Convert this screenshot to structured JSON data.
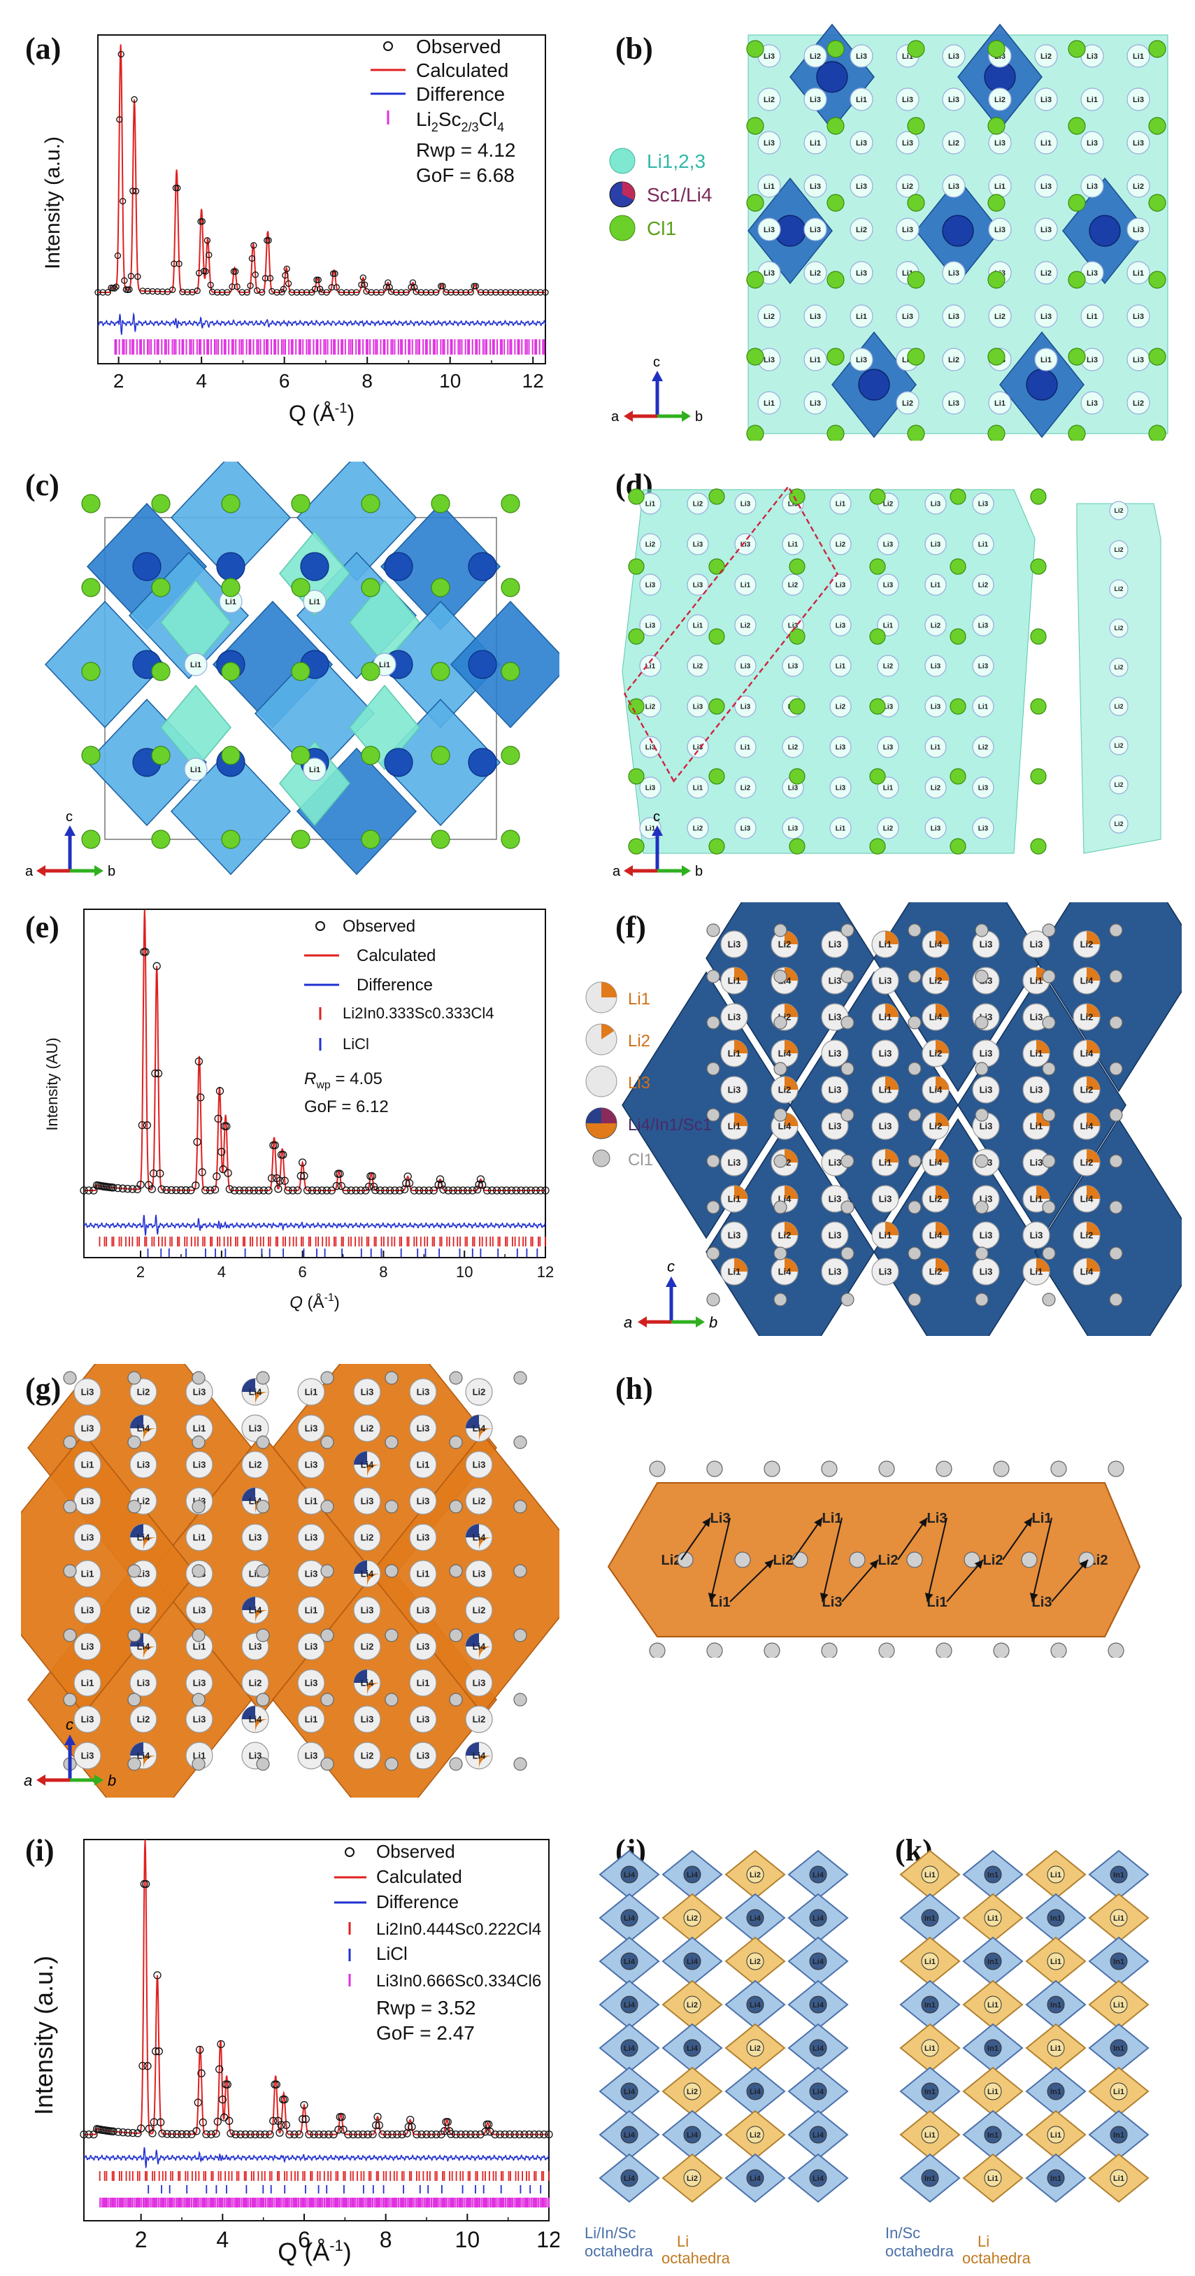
{
  "labels": {
    "a": "(a)",
    "b": "(b)",
    "c": "(c)",
    "d": "(d)",
    "e": "(e)",
    "f": "(f)",
    "g": "(g)",
    "h": "(h)",
    "i": "(i)",
    "j": "(j)",
    "k": "(k)"
  },
  "plot_a": {
    "ylabel": "Intensity (a.u.)",
    "xlabel_main": "Q (Å",
    "xlabel_sup": "-1",
    "xlabel_end": ")",
    "legend": [
      "Observed",
      "Calculated",
      "Difference"
    ],
    "phase_main": "Li",
    "phase_sub1": "2",
    "phase_mid": "Sc",
    "phase_sub2": "2/3",
    "phase_end": "Cl",
    "phase_sub3": "4",
    "rwp": "Rwp = 4.12",
    "gof": "GoF = 6.68",
    "ticks": [
      "2",
      "4",
      "6",
      "8",
      "10",
      "12"
    ]
  },
  "plot_e": {
    "ylabel": "Intensity (AU)",
    "xlabel_main": "Q",
    "xlabel_end": " (Å",
    "xlabel_sup": "-1",
    "xlabel_close": ")",
    "legend": [
      "Observed",
      "Calculated",
      "Difference"
    ],
    "phase1": "Li2In0.333Sc0.333Cl4",
    "phase2": "LiCl",
    "rwp_prefix": "R",
    "rwp_sub": "wp",
    "rwp_val": " = 4.05",
    "gof": "GoF = 6.12",
    "ticks": [
      "2",
      "4",
      "6",
      "8",
      "10",
      "12"
    ]
  },
  "plot_i": {
    "ylabel": "Intensity (a.u.)",
    "xlabel_main": "Q (Å",
    "xlabel_sup": "-1",
    "xlabel_end": ")",
    "legend": [
      "Observed",
      "Calculated",
      "Difference"
    ],
    "phase1": "Li2In0.444Sc0.222Cl4",
    "phase2": "LiCl",
    "phase3": "Li3In0.666Sc0.334Cl6",
    "rwp": "Rwp = 3.52",
    "gof": "GoF = 2.47",
    "ticks": [
      "2",
      "4",
      "6",
      "8",
      "10",
      "12"
    ]
  },
  "legend_b": [
    "Li1,2,3",
    "Sc1/Li4",
    "Cl1"
  ],
  "legend_f": [
    "Li1",
    "Li2",
    "Li3",
    "Li4/In1/Sc1",
    "Cl1"
  ],
  "axes": {
    "a": "a",
    "b": "b",
    "c": "c"
  },
  "atom_labels": {
    "li1": "Li1",
    "li2": "Li2",
    "li3": "Li3",
    "li4": "Li4",
    "in1": "In1"
  },
  "j_caption": [
    "Li/In/Sc",
    "octahedra",
    "Li",
    "octahedra"
  ],
  "k_caption": [
    "In/Sc",
    "octahedra",
    "Li",
    "octahedra"
  ],
  "colors": {
    "red": "#e02020",
    "blue": "#2030d0",
    "magenta": "#e030e0",
    "teal": "#7fe8d0",
    "navy": "#1f4f8a",
    "orange": "#e07a1a",
    "green": "#6bd12a"
  },
  "chart_data": [
    {
      "type": "line",
      "panel": "a",
      "xlabel": "Q (Å-1)",
      "ylabel": "Intensity (a.u.)",
      "xlim": [
        1.5,
        12.3
      ],
      "peaks": [
        {
          "x": 2.05,
          "y": 1.0
        },
        {
          "x": 2.38,
          "y": 0.78
        },
        {
          "x": 3.4,
          "y": 0.5
        },
        {
          "x": 4.0,
          "y": 0.34
        },
        {
          "x": 4.15,
          "y": 0.22
        },
        {
          "x": 4.8,
          "y": 0.1
        },
        {
          "x": 5.25,
          "y": 0.2
        },
        {
          "x": 5.6,
          "y": 0.25
        },
        {
          "x": 6.05,
          "y": 0.1
        },
        {
          "x": 6.8,
          "y": 0.06
        },
        {
          "x": 7.2,
          "y": 0.09
        },
        {
          "x": 7.9,
          "y": 0.06
        },
        {
          "x": 8.5,
          "y": 0.04
        },
        {
          "x": 9.1,
          "y": 0.04
        },
        {
          "x": 9.8,
          "y": 0.03
        },
        {
          "x": 10.6,
          "y": 0.03
        }
      ],
      "series": [
        {
          "name": "Observed"
        },
        {
          "name": "Calculated"
        },
        {
          "name": "Difference"
        },
        {
          "name": "Li2Sc2/3Cl4"
        }
      ]
    },
    {
      "type": "line",
      "panel": "e",
      "xlabel": "Q (Å-1)",
      "ylabel": "Intensity (AU)",
      "xlim": [
        0.6,
        12
      ],
      "peaks": [
        {
          "x": 2.1,
          "y": 1.0
        },
        {
          "x": 2.4,
          "y": 0.8
        },
        {
          "x": 3.45,
          "y": 0.48
        },
        {
          "x": 3.95,
          "y": 0.37
        },
        {
          "x": 4.1,
          "y": 0.27
        },
        {
          "x": 5.3,
          "y": 0.19
        },
        {
          "x": 5.5,
          "y": 0.15
        },
        {
          "x": 6.0,
          "y": 0.1
        },
        {
          "x": 6.9,
          "y": 0.07
        },
        {
          "x": 7.7,
          "y": 0.06
        },
        {
          "x": 8.6,
          "y": 0.05
        },
        {
          "x": 9.4,
          "y": 0.04
        },
        {
          "x": 10.4,
          "y": 0.04
        }
      ],
      "series": [
        {
          "name": "Observed"
        },
        {
          "name": "Calculated"
        },
        {
          "name": "Difference"
        },
        {
          "name": "Li2In0.333Sc0.333Cl4"
        },
        {
          "name": "LiCl"
        }
      ]
    },
    {
      "type": "line",
      "panel": "i",
      "xlabel": "Q (Å-1)",
      "ylabel": "Intensity (a.u.)",
      "xlim": [
        0.6,
        12
      ],
      "peaks": [
        {
          "x": 2.1,
          "y": 1.0
        },
        {
          "x": 2.4,
          "y": 0.54
        },
        {
          "x": 3.45,
          "y": 0.3
        },
        {
          "x": 3.95,
          "y": 0.32
        },
        {
          "x": 4.1,
          "y": 0.2
        },
        {
          "x": 5.3,
          "y": 0.2
        },
        {
          "x": 5.5,
          "y": 0.14
        },
        {
          "x": 6.0,
          "y": 0.1
        },
        {
          "x": 6.9,
          "y": 0.07
        },
        {
          "x": 7.8,
          "y": 0.06
        },
        {
          "x": 8.6,
          "y": 0.05
        },
        {
          "x": 9.5,
          "y": 0.05
        },
        {
          "x": 10.5,
          "y": 0.04
        }
      ],
      "series": [
        {
          "name": "Observed"
        },
        {
          "name": "Calculated"
        },
        {
          "name": "Difference"
        },
        {
          "name": "Li2In0.444Sc0.222Cl4"
        },
        {
          "name": "LiCl"
        },
        {
          "name": "Li3In0.666Sc0.334Cl6"
        }
      ]
    }
  ]
}
